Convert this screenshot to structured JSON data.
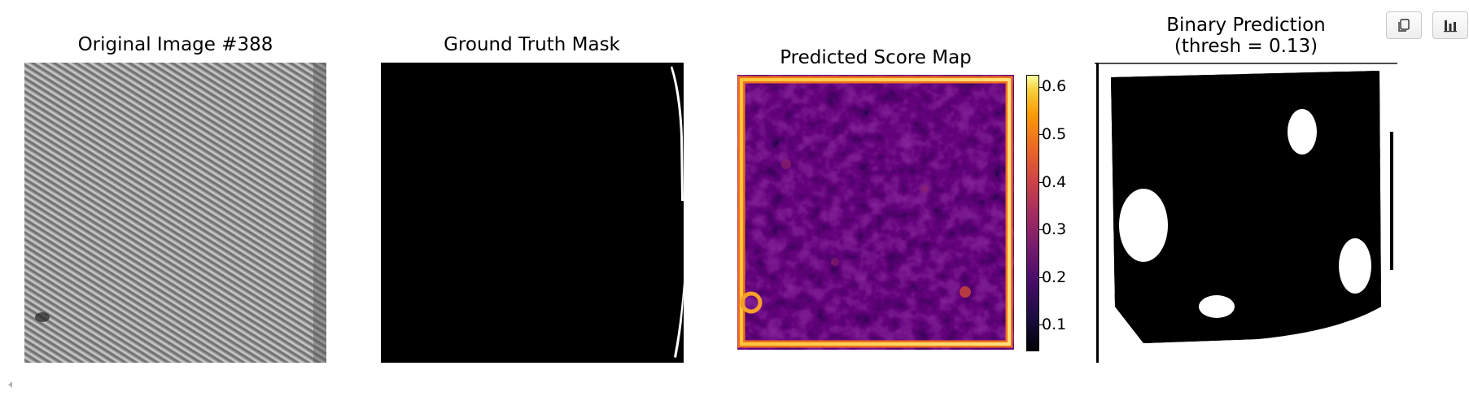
{
  "toolbar": {
    "copy_icon": "copy-icon",
    "chart_icon": "bar-chart-icon"
  },
  "panels": [
    {
      "title": "Original Image #388"
    },
    {
      "title": "Ground Truth Mask"
    },
    {
      "title": "Predicted Score Map"
    },
    {
      "title_line1": "Binary Prediction",
      "title_line2": "(thresh = 0.13)"
    }
  ],
  "colorbar": {
    "colormap": "inferno",
    "ticks": [
      "0.6",
      "0.5",
      "0.4",
      "0.3",
      "0.2",
      "0.1"
    ],
    "min": 0.04,
    "max": 0.625
  },
  "colors": {
    "mask_background": "#000000",
    "mask_foreground": "#ffffff",
    "texture_gray": "#8a8a8a"
  }
}
